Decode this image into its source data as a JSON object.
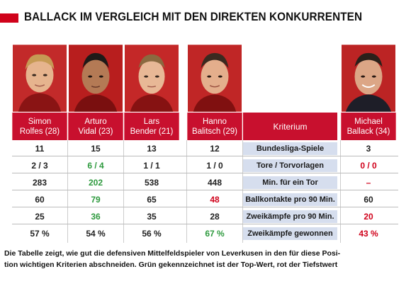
{
  "header": {
    "title": "BALLACK IM VERGLEICH MIT DEN DIREKTEN KONKURRENTEN",
    "accent_color": "#d0021b"
  },
  "players": [
    {
      "name_line1": "Simon",
      "name_line2": "Rolfes (28)",
      "photo_icon": "player-portrait-icon"
    },
    {
      "name_line1": "Arturo",
      "name_line2": "Vidal (23)",
      "photo_icon": "player-portrait-icon"
    },
    {
      "name_line1": "Lars",
      "name_line2": "Bender (21)",
      "photo_icon": "player-portrait-icon"
    },
    {
      "name_line1": "Hanno",
      "name_line2": "Balitsch (29)",
      "photo_icon": "player-portrait-icon"
    },
    {
      "name_line1": "Michael",
      "name_line2": "Ballack (34)",
      "photo_icon": "player-portrait-icon"
    }
  ],
  "criterium_header": "Kriterium",
  "rows": [
    {
      "criterium": "Bundesliga-Spiele",
      "values": [
        "11",
        "15",
        "13",
        "12",
        "3"
      ],
      "highlights": [
        "",
        "",
        "",
        "",
        ""
      ]
    },
    {
      "criterium": "Tore / Torvorlagen",
      "values": [
        "2 / 3",
        "6 / 4",
        "1 / 1",
        "1 / 0",
        "0 / 0"
      ],
      "highlights": [
        "",
        "green",
        "",
        "",
        "red"
      ]
    },
    {
      "criterium": "Min. für ein Tor",
      "values": [
        "283",
        "202",
        "538",
        "448",
        "–"
      ],
      "highlights": [
        "",
        "green",
        "",
        "",
        "red"
      ]
    },
    {
      "criterium": "Ballkontakte pro 90 Min.",
      "values": [
        "60",
        "79",
        "65",
        "48",
        "60"
      ],
      "highlights": [
        "",
        "green",
        "",
        "red",
        ""
      ]
    },
    {
      "criterium": "Zweikämpfe pro 90 Min.",
      "values": [
        "25",
        "36",
        "35",
        "28",
        "20"
      ],
      "highlights": [
        "",
        "green",
        "",
        "",
        "red"
      ]
    },
    {
      "criterium": "Zweikämpfe gewonnen",
      "values": [
        "57 %",
        "54 %",
        "56 %",
        "67 %",
        "43 %"
      ],
      "highlights": [
        "",
        "",
        "",
        "green",
        "red"
      ]
    }
  ],
  "footer": {
    "line1": "Die Tabelle zeigt, wie gut die defensiven Mittelfeldspieler von Leverkusen in den für diese Posi-",
    "line2": "tion wichtigen Kriterien abschneiden. Grün gekennzeichnet ist der Top-Wert, rot der Tiefstwert"
  },
  "colors": {
    "red": "#c8102e",
    "green": "#2e9a3e",
    "criterium_bg": "#d6deee"
  }
}
